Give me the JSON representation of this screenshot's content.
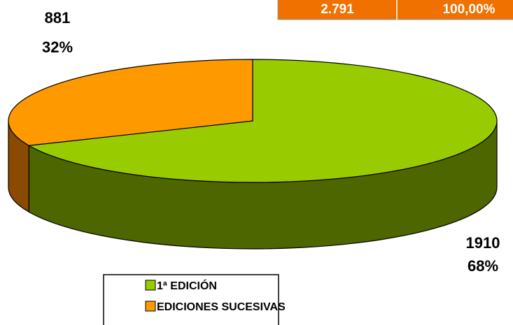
{
  "chart_data": {
    "type": "pie",
    "categories": [
      "1ª EDICIÓN",
      "EDICIONES SUCESIVAS"
    ],
    "values": [
      1910,
      881
    ],
    "percent_labels": [
      "68%",
      "32%"
    ],
    "colors": [
      "#99cc00",
      "#ff9900"
    ],
    "side_colors": [
      "#4d6600",
      "#8a4a00"
    ],
    "legend": "bottom"
  },
  "table": {
    "rows": [
      [
        "2.791",
        "100,00%"
      ]
    ]
  }
}
